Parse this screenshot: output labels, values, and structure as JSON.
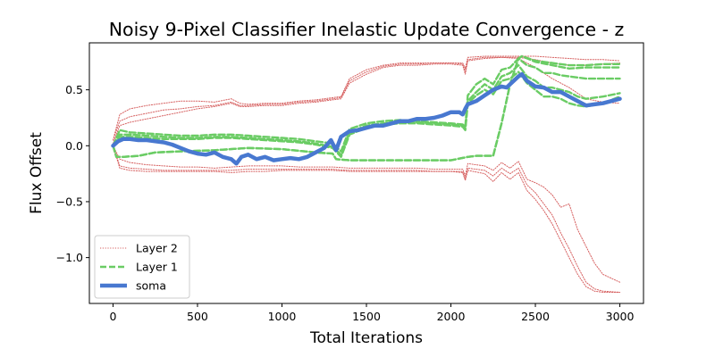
{
  "chart_data": {
    "type": "line",
    "title": "Noisy 9-Pixel Classifier Inelastic Update Convergence - z",
    "xlabel": "Total Iterations",
    "ylabel": "Flux Offset",
    "xlim": [
      -140,
      3140
    ],
    "ylim": [
      -1.41,
      0.92
    ],
    "xticks": [
      0,
      500,
      1000,
      1500,
      2000,
      2500,
      3000
    ],
    "yticks": [
      -1.0,
      -0.5,
      0.0,
      0.5
    ],
    "xtick_labels": [
      "0",
      "500",
      "1000",
      "1500",
      "2000",
      "2500",
      "3000"
    ],
    "ytick_labels": [
      "−1.0",
      "−0.5",
      "0.0",
      "0.5"
    ],
    "grid": false,
    "legend_position": "lower-left",
    "legend": [
      {
        "label": "Layer 2",
        "color": "#d65f5f",
        "style": "dotted"
      },
      {
        "label": "Layer 1",
        "color": "#6acc64",
        "style": "dashed"
      },
      {
        "label": "soma",
        "color": "#4878d0",
        "style": "solid"
      }
    ],
    "series": [
      {
        "name": "Layer 2",
        "color": "#d65f5f",
        "style": "dotted",
        "x": [
          0,
          40,
          100,
          200,
          300,
          400,
          500,
          600,
          700,
          750,
          800,
          900,
          1000,
          1100,
          1200,
          1300,
          1350,
          1400,
          1500,
          1600,
          1700,
          1800,
          1900,
          2000,
          2070,
          2085,
          2100,
          2200,
          2300,
          2400,
          2500,
          2600,
          2700,
          2800,
          2900,
          3000
        ],
        "y": [
          0.05,
          0.28,
          0.33,
          0.36,
          0.38,
          0.4,
          0.4,
          0.39,
          0.42,
          0.38,
          0.37,
          0.38,
          0.38,
          0.4,
          0.41,
          0.43,
          0.44,
          0.6,
          0.68,
          0.72,
          0.74,
          0.74,
          0.74,
          0.74,
          0.74,
          0.69,
          0.79,
          0.8,
          0.8,
          0.8,
          0.8,
          0.79,
          0.78,
          0.77,
          0.77,
          0.76
        ]
      },
      {
        "name": "Layer 2",
        "color": "#d65f5f",
        "style": "dotted",
        "x": [
          0,
          40,
          100,
          200,
          300,
          400,
          500,
          600,
          700,
          750,
          800,
          900,
          1000,
          1100,
          1200,
          1300,
          1350,
          1400,
          1500,
          1600,
          1700,
          1800,
          1900,
          2000,
          2070,
          2085,
          2100,
          2200,
          2300,
          2400,
          2500,
          2600,
          2700,
          2800,
          2900,
          3000
        ],
        "y": [
          0.05,
          0.22,
          0.26,
          0.29,
          0.32,
          0.33,
          0.35,
          0.36,
          0.39,
          0.36,
          0.36,
          0.37,
          0.37,
          0.39,
          0.4,
          0.42,
          0.43,
          0.58,
          0.66,
          0.71,
          0.73,
          0.73,
          0.74,
          0.74,
          0.73,
          0.66,
          0.77,
          0.79,
          0.79,
          0.79,
          0.77,
          0.74,
          0.72,
          0.72,
          0.73,
          0.74
        ]
      },
      {
        "name": "Layer 2",
        "color": "#d65f5f",
        "style": "dotted",
        "x": [
          0,
          40,
          100,
          200,
          300,
          400,
          500,
          600,
          700,
          750,
          800,
          900,
          1000,
          1100,
          1200,
          1300,
          1350,
          1400,
          1500,
          1600,
          1700,
          1800,
          1900,
          2000,
          2070,
          2085,
          2100,
          2200,
          2300,
          2400,
          2500,
          2600,
          2700,
          2800,
          2900,
          3000
        ],
        "y": [
          0.02,
          0.18,
          0.21,
          0.24,
          0.27,
          0.3,
          0.33,
          0.35,
          0.38,
          0.35,
          0.35,
          0.36,
          0.36,
          0.38,
          0.39,
          0.41,
          0.42,
          0.56,
          0.64,
          0.7,
          0.72,
          0.72,
          0.73,
          0.73,
          0.72,
          0.64,
          0.76,
          0.78,
          0.79,
          0.78,
          0.7,
          0.6,
          0.52,
          0.42,
          0.39,
          0.38
        ]
      },
      {
        "name": "Layer 2",
        "color": "#d65f5f",
        "style": "dotted",
        "x": [
          0,
          40,
          100,
          200,
          300,
          400,
          500,
          600,
          700,
          800,
          900,
          1000,
          1100,
          1200,
          1300,
          1400,
          1500,
          1600,
          1700,
          1800,
          1900,
          2000,
          2070,
          2085,
          2100,
          2200,
          2250,
          2300,
          2350,
          2400,
          2450,
          2500,
          2550,
          2600,
          2650,
          2700,
          2750,
          2800,
          2850,
          2900,
          3000
        ],
        "y": [
          0.0,
          -0.12,
          -0.15,
          -0.17,
          -0.18,
          -0.19,
          -0.19,
          -0.2,
          -0.19,
          -0.18,
          -0.18,
          -0.18,
          -0.19,
          -0.19,
          -0.19,
          -0.2,
          -0.2,
          -0.2,
          -0.2,
          -0.2,
          -0.21,
          -0.21,
          -0.21,
          -0.27,
          -0.16,
          -0.18,
          -0.22,
          -0.15,
          -0.2,
          -0.14,
          -0.3,
          -0.33,
          -0.37,
          -0.44,
          -0.55,
          -0.52,
          -0.75,
          -0.9,
          -1.05,
          -1.15,
          -1.22
        ]
      },
      {
        "name": "Layer 2",
        "color": "#d65f5f",
        "style": "dotted",
        "x": [
          0,
          40,
          100,
          200,
          300,
          400,
          500,
          600,
          700,
          800,
          900,
          1000,
          1100,
          1200,
          1300,
          1400,
          1500,
          1600,
          1700,
          1800,
          1900,
          2000,
          2070,
          2085,
          2100,
          2200,
          2250,
          2300,
          2350,
          2400,
          2450,
          2500,
          2550,
          2600,
          2650,
          2700,
          2750,
          2800,
          2850,
          2900,
          3000
        ],
        "y": [
          0.0,
          -0.18,
          -0.2,
          -0.21,
          -0.22,
          -0.22,
          -0.22,
          -0.22,
          -0.22,
          -0.21,
          -0.21,
          -0.21,
          -0.21,
          -0.21,
          -0.21,
          -0.22,
          -0.22,
          -0.22,
          -0.22,
          -0.22,
          -0.23,
          -0.23,
          -0.23,
          -0.3,
          -0.2,
          -0.22,
          -0.27,
          -0.2,
          -0.25,
          -0.2,
          -0.35,
          -0.42,
          -0.52,
          -0.62,
          -0.78,
          -0.92,
          -1.08,
          -1.22,
          -1.28,
          -1.3,
          -1.31
        ]
      },
      {
        "name": "Layer 2",
        "color": "#d65f5f",
        "style": "dotted",
        "x": [
          0,
          40,
          100,
          200,
          300,
          400,
          500,
          600,
          700,
          800,
          900,
          1000,
          1100,
          1200,
          1300,
          1400,
          1500,
          1600,
          1700,
          1800,
          1900,
          2000,
          2070,
          2085,
          2100,
          2200,
          2250,
          2300,
          2350,
          2400,
          2450,
          2500,
          2550,
          2600,
          2650,
          2700,
          2750,
          2800,
          2850,
          2900,
          3000
        ],
        "y": [
          0.0,
          -0.2,
          -0.22,
          -0.23,
          -0.23,
          -0.23,
          -0.23,
          -0.23,
          -0.24,
          -0.23,
          -0.23,
          -0.22,
          -0.22,
          -0.22,
          -0.22,
          -0.23,
          -0.23,
          -0.23,
          -0.23,
          -0.23,
          -0.23,
          -0.23,
          -0.24,
          -0.31,
          -0.22,
          -0.25,
          -0.32,
          -0.24,
          -0.3,
          -0.24,
          -0.4,
          -0.48,
          -0.58,
          -0.7,
          -0.85,
          -1.0,
          -1.15,
          -1.26,
          -1.3,
          -1.31,
          -1.31
        ]
      },
      {
        "name": "Layer 1",
        "color": "#6acc64",
        "style": "dashed",
        "x": [
          0,
          20,
          60,
          150,
          250,
          400,
          600,
          800,
          1000,
          1200,
          1300,
          1320,
          1400,
          1500,
          1600,
          1800,
          2000,
          2100,
          2150,
          2200,
          2250,
          2300,
          2350,
          2400,
          2420,
          2500,
          2600,
          2700,
          2800,
          2900,
          3000
        ],
        "y": [
          0.0,
          -0.1,
          -0.1,
          -0.09,
          -0.06,
          -0.05,
          -0.04,
          -0.02,
          -0.03,
          -0.06,
          -0.07,
          -0.12,
          -0.13,
          -0.13,
          -0.13,
          -0.13,
          -0.13,
          -0.1,
          -0.09,
          -0.09,
          -0.09,
          0.2,
          0.55,
          0.78,
          0.8,
          0.76,
          0.74,
          0.72,
          0.72,
          0.73,
          0.73
        ]
      },
      {
        "name": "Layer 1",
        "color": "#6acc64",
        "style": "dashed",
        "x": [
          0,
          20,
          60,
          150,
          250,
          400,
          600,
          800,
          1000,
          1200,
          1300,
          1320,
          1400,
          1500,
          1600,
          1800,
          2000,
          2100,
          2150,
          2200,
          2250,
          2300,
          2350,
          2400,
          2420,
          2500,
          2600,
          2700,
          2800,
          2900,
          3000
        ],
        "y": [
          0.0,
          -0.1,
          -0.1,
          -0.09,
          -0.06,
          -0.05,
          -0.04,
          -0.02,
          -0.03,
          -0.06,
          -0.07,
          -0.12,
          -0.13,
          -0.13,
          -0.13,
          -0.13,
          -0.13,
          -0.1,
          -0.09,
          -0.09,
          -0.09,
          0.2,
          0.55,
          0.78,
          0.8,
          0.75,
          0.72,
          0.69,
          0.7,
          0.7,
          0.7
        ]
      },
      {
        "name": "Layer 1",
        "color": "#6acc64",
        "style": "dashed",
        "x": [
          0,
          40,
          100,
          200,
          300,
          400,
          500,
          600,
          700,
          800,
          900,
          1000,
          1100,
          1200,
          1300,
          1350,
          1400,
          1500,
          1600,
          1700,
          1800,
          1900,
          2000,
          2070,
          2085,
          2100,
          2150,
          2200,
          2250,
          2300,
          2350,
          2400,
          2450,
          2500,
          2550,
          2600,
          2650,
          2700,
          2750,
          2800,
          2900,
          3000
        ],
        "y": [
          0.0,
          0.14,
          0.12,
          0.11,
          0.1,
          0.09,
          0.09,
          0.1,
          0.1,
          0.09,
          0.08,
          0.07,
          0.06,
          0.04,
          0.02,
          -0.05,
          0.15,
          0.2,
          0.22,
          0.23,
          0.22,
          0.21,
          0.2,
          0.19,
          0.17,
          0.45,
          0.55,
          0.6,
          0.55,
          0.68,
          0.7,
          0.78,
          0.72,
          0.7,
          0.65,
          0.65,
          0.63,
          0.62,
          0.61,
          0.6,
          0.6,
          0.6
        ]
      },
      {
        "name": "Layer 1",
        "color": "#6acc64",
        "style": "dashed",
        "x": [
          0,
          40,
          100,
          200,
          300,
          400,
          500,
          600,
          700,
          800,
          900,
          1000,
          1100,
          1200,
          1300,
          1350,
          1400,
          1500,
          1600,
          1700,
          1800,
          1900,
          2000,
          2070,
          2085,
          2100,
          2150,
          2200,
          2250,
          2300,
          2350,
          2400,
          2450,
          2500,
          2550,
          2600,
          2650,
          2700,
          2750,
          2800,
          2900,
          3000
        ],
        "y": [
          0.0,
          0.1,
          0.1,
          0.09,
          0.08,
          0.07,
          0.07,
          0.08,
          0.08,
          0.07,
          0.06,
          0.05,
          0.04,
          0.02,
          -0.01,
          -0.08,
          0.12,
          0.18,
          0.2,
          0.21,
          0.21,
          0.2,
          0.19,
          0.18,
          0.15,
          0.4,
          0.48,
          0.55,
          0.5,
          0.62,
          0.65,
          0.72,
          0.62,
          0.58,
          0.52,
          0.52,
          0.5,
          0.48,
          0.44,
          0.42,
          0.44,
          0.47
        ]
      },
      {
        "name": "Layer 1",
        "color": "#6acc64",
        "style": "dashed",
        "x": [
          0,
          40,
          100,
          200,
          300,
          400,
          500,
          600,
          700,
          800,
          900,
          1000,
          1100,
          1200,
          1300,
          1350,
          1400,
          1500,
          1600,
          1700,
          1800,
          1900,
          2000,
          2070,
          2085,
          2100,
          2150,
          2200,
          2250,
          2300,
          2350,
          2400,
          2450,
          2500,
          2550,
          2600,
          2650,
          2700,
          2750,
          2800,
          2900,
          3000
        ],
        "y": [
          0.0,
          0.08,
          0.08,
          0.07,
          0.06,
          0.06,
          0.06,
          0.07,
          0.07,
          0.06,
          0.05,
          0.04,
          0.03,
          0.01,
          -0.02,
          -0.1,
          0.1,
          0.16,
          0.19,
          0.2,
          0.2,
          0.19,
          0.18,
          0.17,
          0.14,
          0.38,
          0.45,
          0.5,
          0.46,
          0.58,
          0.6,
          0.66,
          0.56,
          0.5,
          0.44,
          0.44,
          0.42,
          0.38,
          0.36,
          0.35,
          0.38,
          0.44
        ]
      },
      {
        "name": "soma",
        "color": "#4878d0",
        "style": "solid",
        "x": [
          0,
          30,
          60,
          100,
          150,
          200,
          250,
          300,
          350,
          400,
          450,
          500,
          550,
          600,
          650,
          700,
          730,
          760,
          800,
          850,
          900,
          950,
          1000,
          1050,
          1100,
          1150,
          1200,
          1250,
          1290,
          1320,
          1350,
          1400,
          1450,
          1500,
          1550,
          1600,
          1650,
          1700,
          1750,
          1800,
          1850,
          1900,
          1950,
          2000,
          2050,
          2070,
          2085,
          2100,
          2150,
          2200,
          2250,
          2300,
          2330,
          2350,
          2400,
          2420,
          2450,
          2500,
          2550,
          2600,
          2650,
          2700,
          2750,
          2800,
          2850,
          2900,
          2950,
          3000
        ],
        "y": [
          0.0,
          0.04,
          0.06,
          0.06,
          0.05,
          0.05,
          0.04,
          0.03,
          0.01,
          -0.02,
          -0.05,
          -0.07,
          -0.08,
          -0.06,
          -0.1,
          -0.12,
          -0.16,
          -0.1,
          -0.08,
          -0.12,
          -0.1,
          -0.13,
          -0.12,
          -0.11,
          -0.12,
          -0.1,
          -0.06,
          -0.02,
          0.05,
          -0.04,
          0.08,
          0.13,
          0.14,
          0.16,
          0.18,
          0.18,
          0.2,
          0.22,
          0.22,
          0.24,
          0.24,
          0.25,
          0.27,
          0.3,
          0.3,
          0.28,
          0.33,
          0.37,
          0.4,
          0.45,
          0.5,
          0.53,
          0.52,
          0.55,
          0.62,
          0.64,
          0.58,
          0.53,
          0.52,
          0.48,
          0.48,
          0.44,
          0.4,
          0.36,
          0.37,
          0.38,
          0.4,
          0.42
        ]
      }
    ]
  }
}
